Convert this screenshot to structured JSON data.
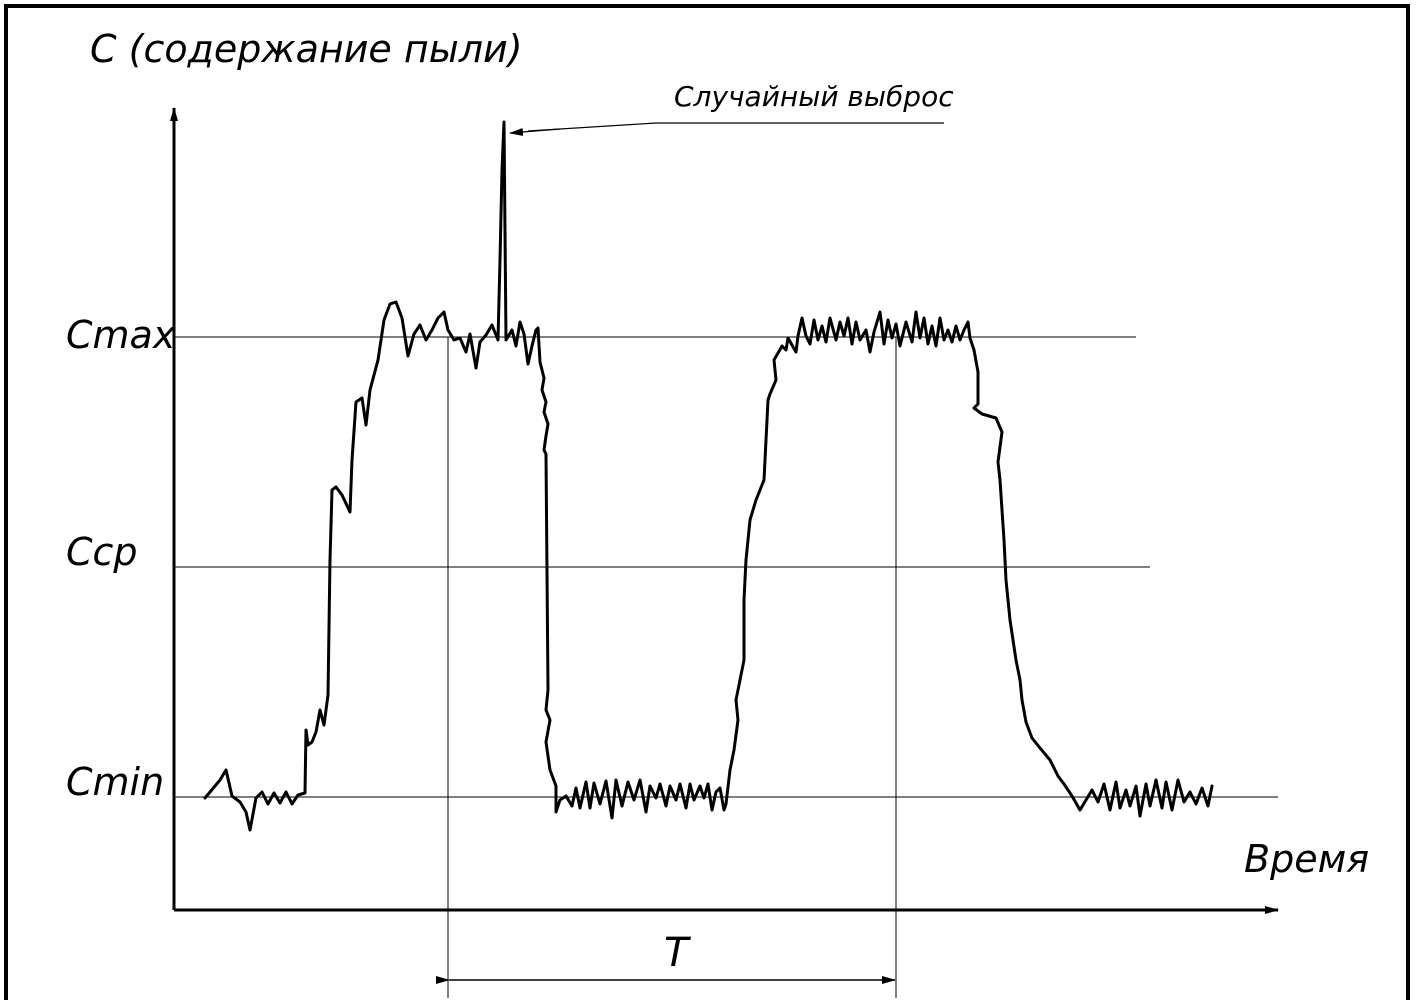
{
  "diagram": {
    "y_axis_title": "С (содержание пыли)",
    "x_axis_title": "Время",
    "levels": {
      "max_label": "Cmax",
      "avg_label": "Cср",
      "min_label": "Cmin"
    },
    "annotation": "Случайный выброс",
    "period_label": "T",
    "colors": {
      "ink": "#000000",
      "background": "#ffffff"
    }
  }
}
